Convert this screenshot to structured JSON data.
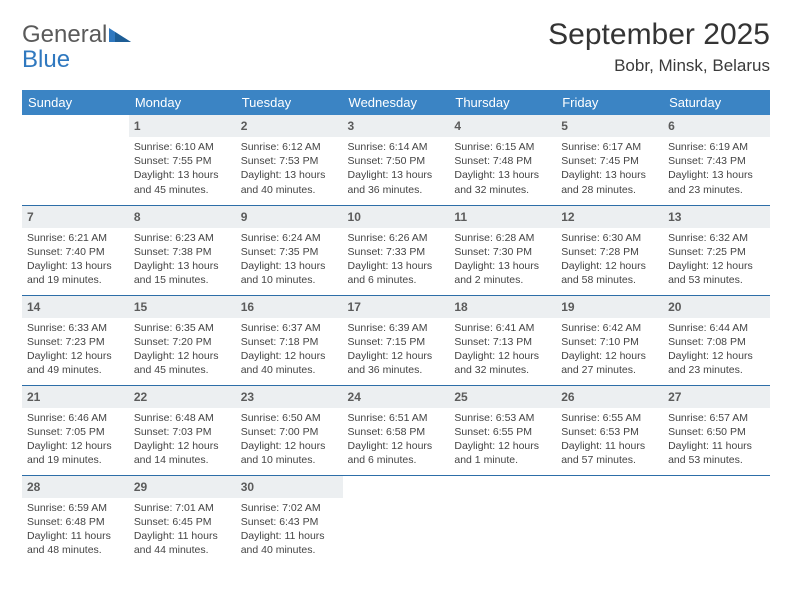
{
  "logo": {
    "word1": "General",
    "word2": "Blue"
  },
  "title": "September 2025",
  "location": "Bobr, Minsk, Belarus",
  "colors": {
    "header_bg": "#3b84c4",
    "header_text": "#ffffff",
    "row_border": "#2d6ea8",
    "daynum_bg": "#eceff1",
    "daynum_text": "#5b5b5b",
    "body_text": "#444444",
    "logo_gray": "#5a5a5a",
    "logo_blue": "#2f78bf",
    "title_color": "#343434",
    "background": "#ffffff"
  },
  "typography": {
    "title_fontsize": 30,
    "location_fontsize": 17,
    "header_fontsize": 13,
    "daynum_fontsize": 12,
    "cell_fontsize": 10.5,
    "logo_fontsize": 24
  },
  "weekday_headers": [
    "Sunday",
    "Monday",
    "Tuesday",
    "Wednesday",
    "Thursday",
    "Friday",
    "Saturday"
  ],
  "weeks": [
    [
      {
        "empty": true
      },
      {
        "day": "1",
        "sunrise": "Sunrise: 6:10 AM",
        "sunset": "Sunset: 7:55 PM",
        "daylight": "Daylight: 13 hours and 45 minutes."
      },
      {
        "day": "2",
        "sunrise": "Sunrise: 6:12 AM",
        "sunset": "Sunset: 7:53 PM",
        "daylight": "Daylight: 13 hours and 40 minutes."
      },
      {
        "day": "3",
        "sunrise": "Sunrise: 6:14 AM",
        "sunset": "Sunset: 7:50 PM",
        "daylight": "Daylight: 13 hours and 36 minutes."
      },
      {
        "day": "4",
        "sunrise": "Sunrise: 6:15 AM",
        "sunset": "Sunset: 7:48 PM",
        "daylight": "Daylight: 13 hours and 32 minutes."
      },
      {
        "day": "5",
        "sunrise": "Sunrise: 6:17 AM",
        "sunset": "Sunset: 7:45 PM",
        "daylight": "Daylight: 13 hours and 28 minutes."
      },
      {
        "day": "6",
        "sunrise": "Sunrise: 6:19 AM",
        "sunset": "Sunset: 7:43 PM",
        "daylight": "Daylight: 13 hours and 23 minutes."
      }
    ],
    [
      {
        "day": "7",
        "sunrise": "Sunrise: 6:21 AM",
        "sunset": "Sunset: 7:40 PM",
        "daylight": "Daylight: 13 hours and 19 minutes."
      },
      {
        "day": "8",
        "sunrise": "Sunrise: 6:23 AM",
        "sunset": "Sunset: 7:38 PM",
        "daylight": "Daylight: 13 hours and 15 minutes."
      },
      {
        "day": "9",
        "sunrise": "Sunrise: 6:24 AM",
        "sunset": "Sunset: 7:35 PM",
        "daylight": "Daylight: 13 hours and 10 minutes."
      },
      {
        "day": "10",
        "sunrise": "Sunrise: 6:26 AM",
        "sunset": "Sunset: 7:33 PM",
        "daylight": "Daylight: 13 hours and 6 minutes."
      },
      {
        "day": "11",
        "sunrise": "Sunrise: 6:28 AM",
        "sunset": "Sunset: 7:30 PM",
        "daylight": "Daylight: 13 hours and 2 minutes."
      },
      {
        "day": "12",
        "sunrise": "Sunrise: 6:30 AM",
        "sunset": "Sunset: 7:28 PM",
        "daylight": "Daylight: 12 hours and 58 minutes."
      },
      {
        "day": "13",
        "sunrise": "Sunrise: 6:32 AM",
        "sunset": "Sunset: 7:25 PM",
        "daylight": "Daylight: 12 hours and 53 minutes."
      }
    ],
    [
      {
        "day": "14",
        "sunrise": "Sunrise: 6:33 AM",
        "sunset": "Sunset: 7:23 PM",
        "daylight": "Daylight: 12 hours and 49 minutes."
      },
      {
        "day": "15",
        "sunrise": "Sunrise: 6:35 AM",
        "sunset": "Sunset: 7:20 PM",
        "daylight": "Daylight: 12 hours and 45 minutes."
      },
      {
        "day": "16",
        "sunrise": "Sunrise: 6:37 AM",
        "sunset": "Sunset: 7:18 PM",
        "daylight": "Daylight: 12 hours and 40 minutes."
      },
      {
        "day": "17",
        "sunrise": "Sunrise: 6:39 AM",
        "sunset": "Sunset: 7:15 PM",
        "daylight": "Daylight: 12 hours and 36 minutes."
      },
      {
        "day": "18",
        "sunrise": "Sunrise: 6:41 AM",
        "sunset": "Sunset: 7:13 PM",
        "daylight": "Daylight: 12 hours and 32 minutes."
      },
      {
        "day": "19",
        "sunrise": "Sunrise: 6:42 AM",
        "sunset": "Sunset: 7:10 PM",
        "daylight": "Daylight: 12 hours and 27 minutes."
      },
      {
        "day": "20",
        "sunrise": "Sunrise: 6:44 AM",
        "sunset": "Sunset: 7:08 PM",
        "daylight": "Daylight: 12 hours and 23 minutes."
      }
    ],
    [
      {
        "day": "21",
        "sunrise": "Sunrise: 6:46 AM",
        "sunset": "Sunset: 7:05 PM",
        "daylight": "Daylight: 12 hours and 19 minutes."
      },
      {
        "day": "22",
        "sunrise": "Sunrise: 6:48 AM",
        "sunset": "Sunset: 7:03 PM",
        "daylight": "Daylight: 12 hours and 14 minutes."
      },
      {
        "day": "23",
        "sunrise": "Sunrise: 6:50 AM",
        "sunset": "Sunset: 7:00 PM",
        "daylight": "Daylight: 12 hours and 10 minutes."
      },
      {
        "day": "24",
        "sunrise": "Sunrise: 6:51 AM",
        "sunset": "Sunset: 6:58 PM",
        "daylight": "Daylight: 12 hours and 6 minutes."
      },
      {
        "day": "25",
        "sunrise": "Sunrise: 6:53 AM",
        "sunset": "Sunset: 6:55 PM",
        "daylight": "Daylight: 12 hours and 1 minute."
      },
      {
        "day": "26",
        "sunrise": "Sunrise: 6:55 AM",
        "sunset": "Sunset: 6:53 PM",
        "daylight": "Daylight: 11 hours and 57 minutes."
      },
      {
        "day": "27",
        "sunrise": "Sunrise: 6:57 AM",
        "sunset": "Sunset: 6:50 PM",
        "daylight": "Daylight: 11 hours and 53 minutes."
      }
    ],
    [
      {
        "day": "28",
        "sunrise": "Sunrise: 6:59 AM",
        "sunset": "Sunset: 6:48 PM",
        "daylight": "Daylight: 11 hours and 48 minutes."
      },
      {
        "day": "29",
        "sunrise": "Sunrise: 7:01 AM",
        "sunset": "Sunset: 6:45 PM",
        "daylight": "Daylight: 11 hours and 44 minutes."
      },
      {
        "day": "30",
        "sunrise": "Sunrise: 7:02 AM",
        "sunset": "Sunset: 6:43 PM",
        "daylight": "Daylight: 11 hours and 40 minutes."
      },
      {
        "empty": true
      },
      {
        "empty": true
      },
      {
        "empty": true
      },
      {
        "empty": true
      }
    ]
  ]
}
